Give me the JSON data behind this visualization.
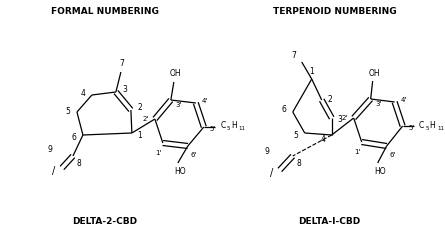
{
  "title_left": "FORMAL NUMBERING",
  "title_right": "TERPENOID NUMBERING",
  "label_left": "DELTA-2-CBD",
  "label_right": "DELTA-I-CBD",
  "bg_color": "#ffffff",
  "line_color": "#000000",
  "text_color": "#000000",
  "fig_width": 4.45,
  "fig_height": 2.33,
  "dpi": 100
}
